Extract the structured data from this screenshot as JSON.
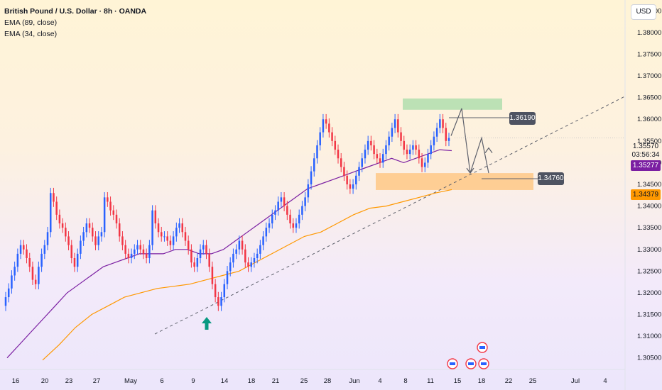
{
  "legend": {
    "title": "British Pound / U.S. Dollar · 8h · OANDA",
    "ema1": "EMA (89, close)",
    "ema2": "EMA (34, close)"
  },
  "axis": {
    "currency": "USD",
    "price_ticks": [
      "1.38500",
      "1.38000",
      "1.37500",
      "1.37000",
      "1.36500",
      "1.36000",
      "1.35500",
      "1.35000",
      "1.34500",
      "1.34000",
      "1.33500",
      "1.33000",
      "1.32500",
      "1.32000",
      "1.31500",
      "1.31000",
      "1.30500"
    ],
    "date_ticks": [
      "16",
      "20",
      "23",
      "27",
      "May",
      "6",
      "9",
      "14",
      "18",
      "21",
      "25",
      "28",
      "Jun",
      "4",
      "8",
      "11",
      "15",
      "18",
      "22",
      "25",
      "Jul",
      "4"
    ]
  },
  "price_labels": {
    "current_price": "1.35570",
    "countdown": "03:56:34",
    "ema34_value": "1.35277",
    "ema89_value": "1.34379"
  },
  "levels": {
    "target_label": "1.36190",
    "support_label": "1.34760"
  },
  "colors": {
    "up": "#2962ff",
    "down": "#f23645",
    "ema34": "#7b1fa2",
    "ema89": "#ff9800",
    "supply_zone": "#a5dba7",
    "demand_zone": "#ffc680",
    "arrow": "#089981"
  },
  "chart_data": {
    "type": "candlestick",
    "timeframe": "8h",
    "y_range": [
      1.3025,
      1.3875
    ],
    "series_close": [
      1.319,
      1.321,
      1.324,
      1.326,
      1.329,
      1.331,
      1.33,
      1.328,
      1.326,
      1.323,
      1.322,
      1.326,
      1.329,
      1.331,
      1.334,
      1.343,
      1.341,
      1.338,
      1.336,
      1.335,
      1.333,
      1.331,
      1.328,
      1.326,
      1.329,
      1.332,
      1.334,
      1.336,
      1.335,
      1.333,
      1.331,
      1.333,
      1.334,
      1.342,
      1.341,
      1.339,
      1.338,
      1.336,
      1.333,
      1.331,
      1.329,
      1.328,
      1.329,
      1.33,
      1.331,
      1.33,
      1.329,
      1.328,
      1.331,
      1.339,
      1.336,
      1.334,
      1.333,
      1.333,
      1.332,
      1.331,
      1.333,
      1.335,
      1.336,
      1.334,
      1.332,
      1.33,
      1.327,
      1.326,
      1.328,
      1.33,
      1.331,
      1.329,
      1.326,
      1.322,
      1.319,
      1.317,
      1.319,
      1.322,
      1.325,
      1.327,
      1.329,
      1.33,
      1.332,
      1.33,
      1.327,
      1.326,
      1.327,
      1.328,
      1.329,
      1.331,
      1.333,
      1.335,
      1.336,
      1.338,
      1.339,
      1.341,
      1.342,
      1.34,
      1.338,
      1.336,
      1.335,
      1.336,
      1.338,
      1.34,
      1.342,
      1.345,
      1.348,
      1.351,
      1.354,
      1.357,
      1.36,
      1.359,
      1.357,
      1.355,
      1.353,
      1.351,
      1.349,
      1.347,
      1.345,
      1.344,
      1.345,
      1.347,
      1.349,
      1.351,
      1.353,
      1.355,
      1.354,
      1.352,
      1.351,
      1.35,
      1.352,
      1.354,
      1.356,
      1.358,
      1.36,
      1.357,
      1.355,
      1.353,
      1.352,
      1.353,
      1.354,
      1.353,
      1.351,
      1.349,
      1.35,
      1.352,
      1.354,
      1.356,
      1.358,
      1.36,
      1.358,
      1.355,
      1.3557
    ],
    "ema34": [
      1.305,
      1.308,
      1.311,
      1.314,
      1.317,
      1.32,
      1.322,
      1.324,
      1.326,
      1.327,
      1.328,
      1.329,
      1.329,
      1.329,
      1.33,
      1.33,
      1.329,
      1.329,
      1.33,
      1.332,
      1.334,
      1.336,
      1.338,
      1.34,
      1.342,
      1.344,
      1.345,
      1.346,
      1.347,
      1.348,
      1.349,
      1.35,
      1.351,
      1.35,
      1.351,
      1.352,
      1.353,
      1.35277
    ],
    "ema89": [
      1.3045,
      1.308,
      1.312,
      1.315,
      1.317,
      1.319,
      1.32,
      1.321,
      1.3215,
      1.322,
      1.323,
      1.324,
      1.325,
      1.327,
      1.329,
      1.331,
      1.333,
      1.334,
      1.336,
      1.338,
      1.3395,
      1.34,
      1.341,
      1.342,
      1.343,
      1.34379
    ],
    "trendline": {
      "from": [
        "May 9",
        1.3105
      ],
      "to": [
        "Jul 4",
        1.3648
      ]
    },
    "supply_zone": [
      1.3622,
      1.3648
    ],
    "demand_zone": [
      1.3437,
      1.3476
    ],
    "projection": [
      1.3562,
      1.3625,
      1.3476,
      1.3557,
      1.3476,
      1.3534
    ]
  }
}
